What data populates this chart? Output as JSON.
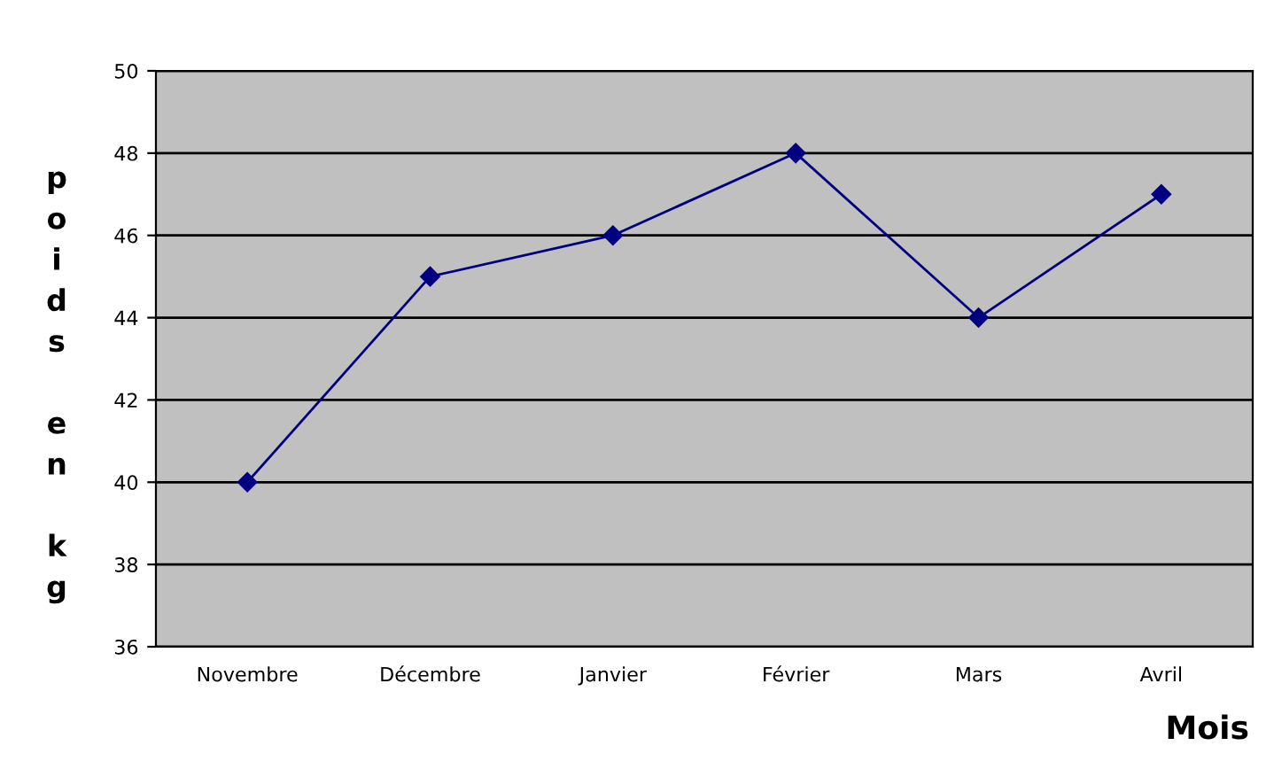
{
  "chart_data": {
    "type": "line",
    "ylabel": "poids en kg",
    "xlabel": "Mois",
    "categories": [
      "Novembre",
      "Décembre",
      "Janvier",
      "Février",
      "Mars",
      "Avril"
    ],
    "series": [
      {
        "color": "#000080",
        "values": [
          40,
          45,
          46,
          48,
          44,
          47
        ]
      }
    ],
    "ylim": [
      36,
      50
    ],
    "yticks": [
      36,
      38,
      40,
      42,
      44,
      46,
      48,
      50
    ],
    "grid": "y",
    "marker": "diamond",
    "line_style": "solid",
    "legend": false
  }
}
